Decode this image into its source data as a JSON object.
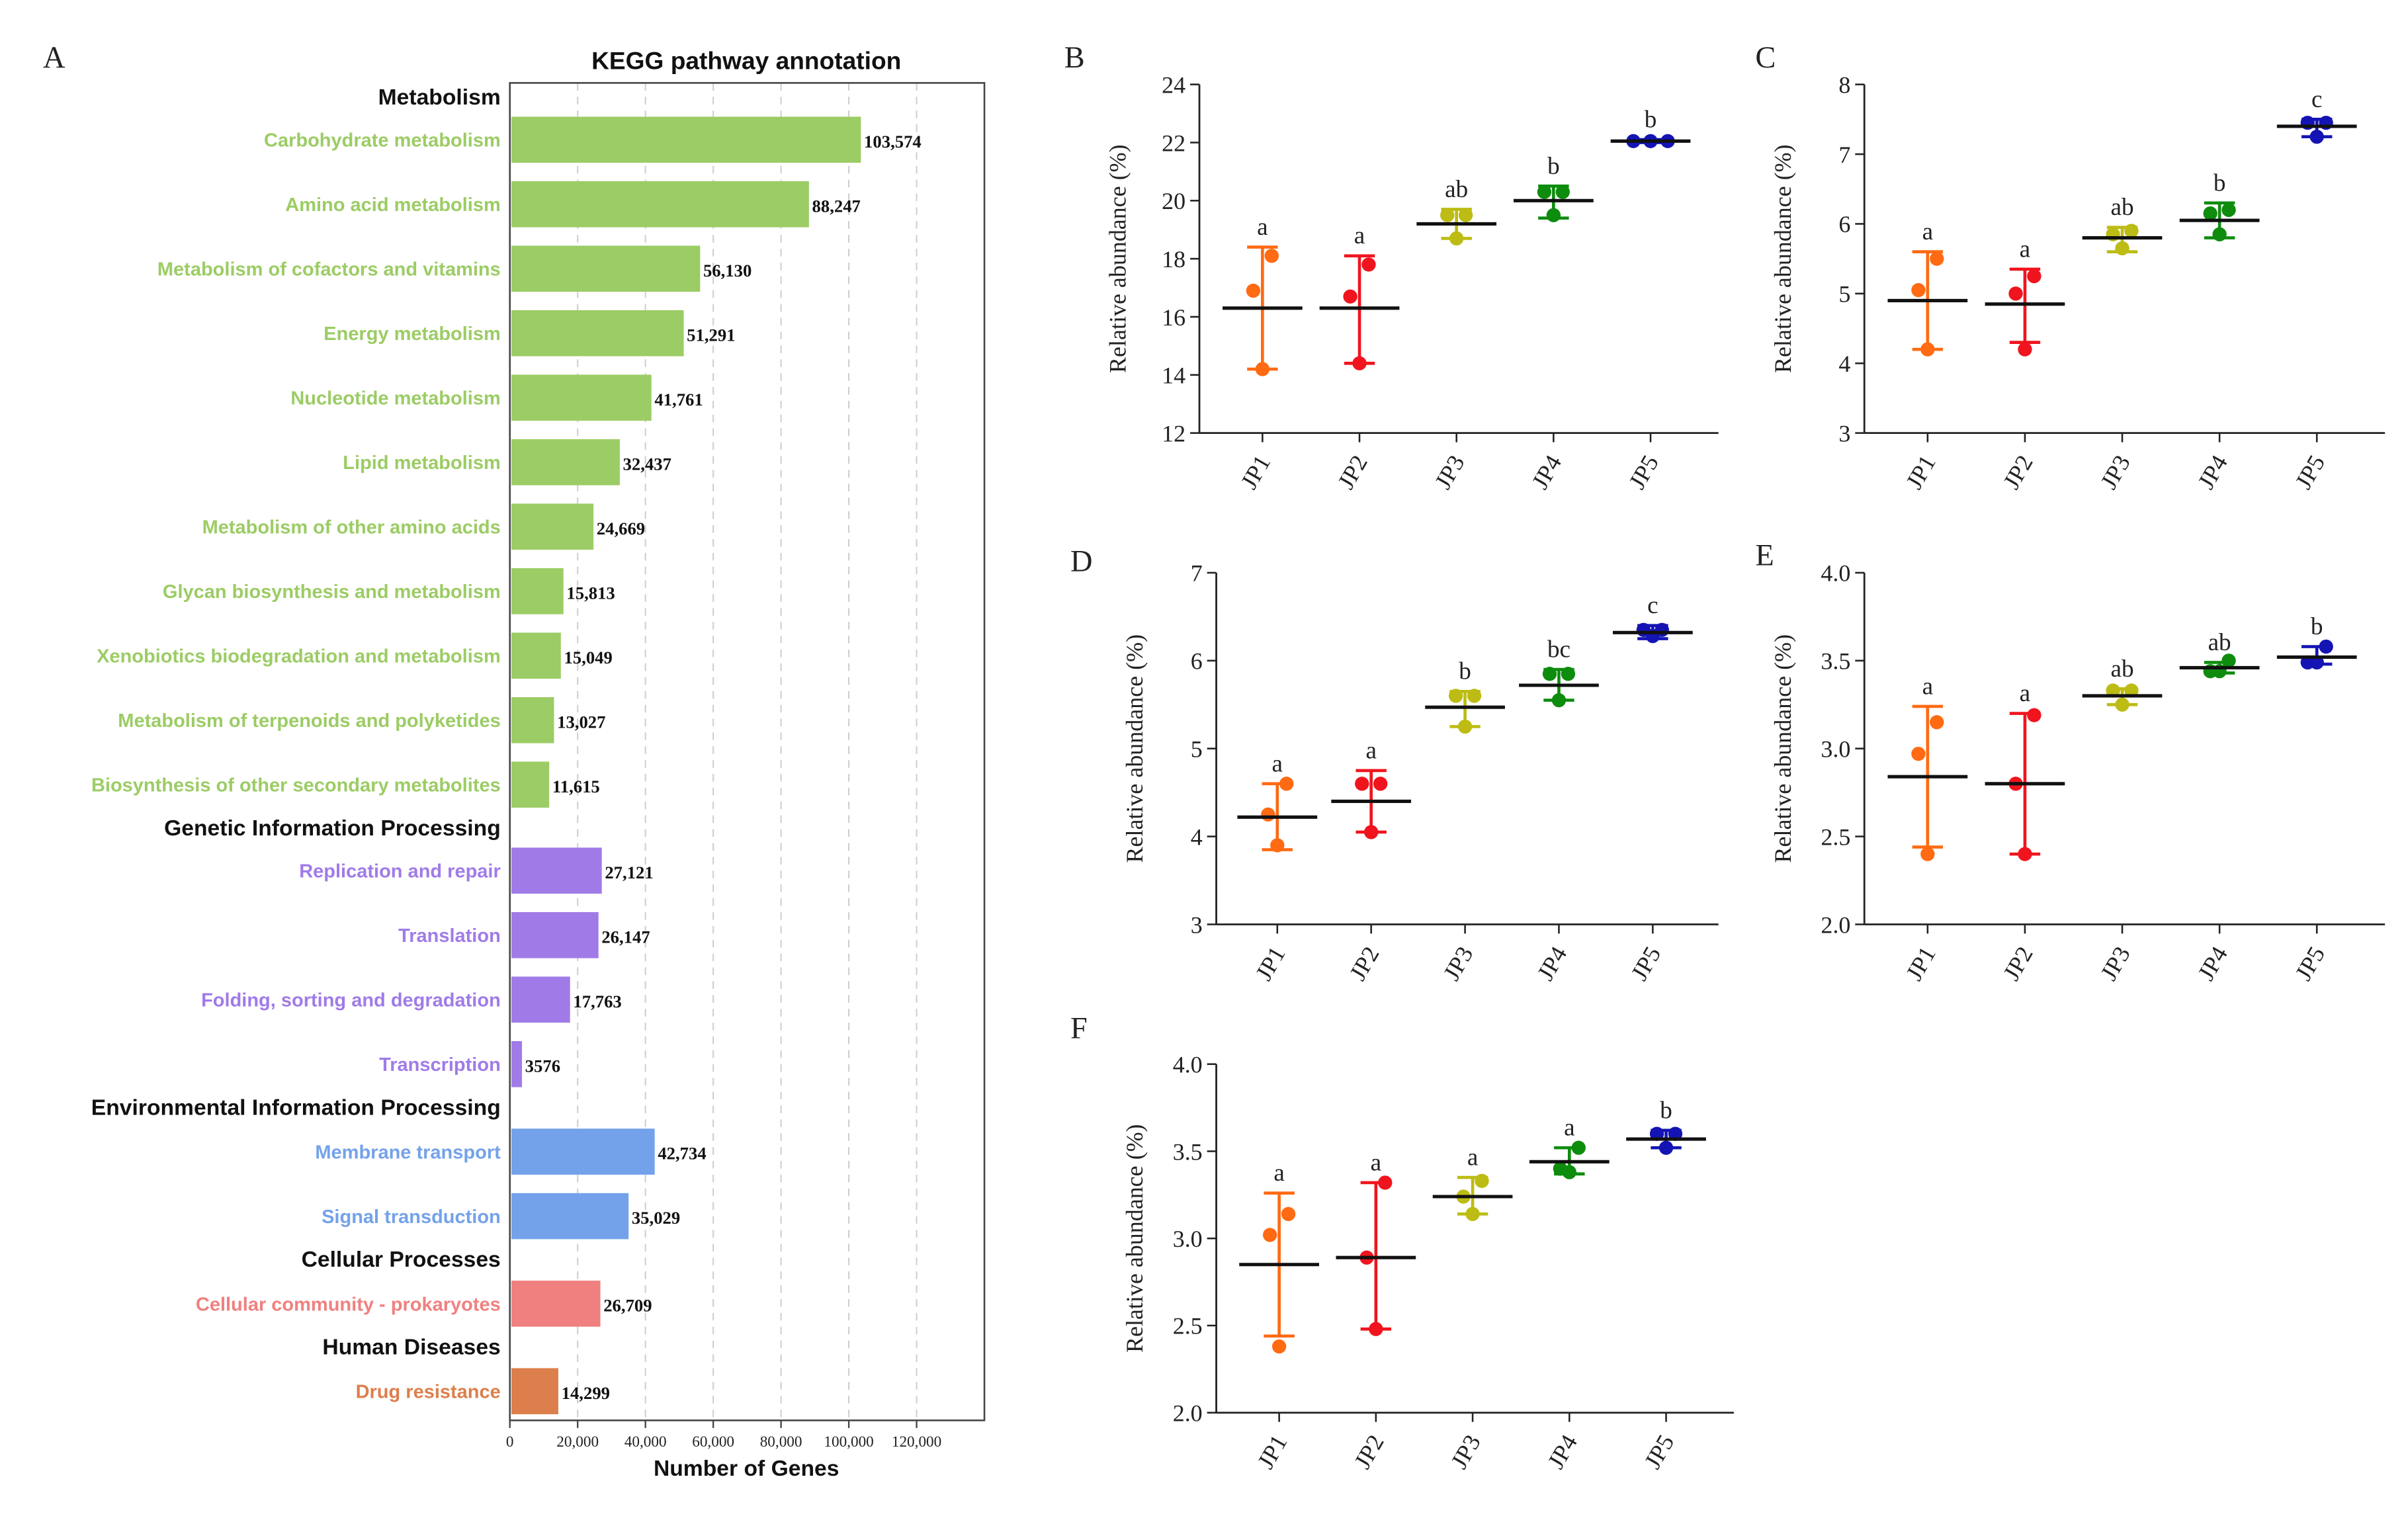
{
  "chart_data": [
    {
      "id": "A",
      "panel_label": "A",
      "type": "bar",
      "orientation": "horizontal",
      "title": "KEGG pathway annotation",
      "xlabel": "Number of Genes",
      "xlim": [
        0,
        140000
      ],
      "xticks": [
        "0",
        "20,000",
        "40,000",
        "60,000",
        "80,000",
        "100,000",
        "120,000"
      ],
      "xtick_values": [
        0,
        20000,
        40000,
        60000,
        80000,
        100000,
        120000
      ],
      "grid": "vertical-dashed",
      "rows": [
        {
          "kind": "header",
          "label": "Metabolism"
        },
        {
          "kind": "bar",
          "label": "Carbohydrate metabolism",
          "value": 103574,
          "value_label": "103,574",
          "color": "#9ccc65"
        },
        {
          "kind": "bar",
          "label": "Amino acid metabolism",
          "value": 88247,
          "value_label": "88,247",
          "color": "#9ccc65"
        },
        {
          "kind": "bar",
          "label": "Metabolism of cofactors and vitamins",
          "value": 56130,
          "value_label": "56,130",
          "color": "#9ccc65"
        },
        {
          "kind": "bar",
          "label": "Energy metabolism",
          "value": 51291,
          "value_label": "51,291",
          "color": "#9ccc65"
        },
        {
          "kind": "bar",
          "label": "Nucleotide metabolism",
          "value": 41761,
          "value_label": "41,761",
          "color": "#9ccc65"
        },
        {
          "kind": "bar",
          "label": "Lipid metabolism",
          "value": 32437,
          "value_label": "32,437",
          "color": "#9ccc65"
        },
        {
          "kind": "bar",
          "label": "Metabolism of other amino acids",
          "value": 24669,
          "value_label": "24,669",
          "color": "#9ccc65"
        },
        {
          "kind": "bar",
          "label": "Glycan biosynthesis and metabolism",
          "value": 15813,
          "value_label": "15,813",
          "color": "#9ccc65"
        },
        {
          "kind": "bar",
          "label": "Xenobiotics biodegradation and metabolism",
          "value": 15049,
          "value_label": "15,049",
          "color": "#9ccc65"
        },
        {
          "kind": "bar",
          "label": "Metabolism of terpenoids and polyketides",
          "value": 13027,
          "value_label": "13,027",
          "color": "#9ccc65"
        },
        {
          "kind": "bar",
          "label": "Biosynthesis of other secondary metabolites",
          "value": 11615,
          "value_label": "11,615",
          "color": "#9ccc65"
        },
        {
          "kind": "header",
          "label": "Genetic Information Processing"
        },
        {
          "kind": "bar",
          "label": "Replication and repair",
          "value": 27121,
          "value_label": "27,121",
          "color": "#a07be8"
        },
        {
          "kind": "bar",
          "label": "Translation",
          "value": 26147,
          "value_label": "26,147",
          "color": "#a07be8"
        },
        {
          "kind": "bar",
          "label": "Folding, sorting and degradation",
          "value": 17763,
          "value_label": "17,763",
          "color": "#a07be8"
        },
        {
          "kind": "bar",
          "label": "Transcription",
          "value": 3576,
          "value_label": "3576",
          "color": "#a07be8"
        },
        {
          "kind": "header",
          "label": "Environmental Information Processing"
        },
        {
          "kind": "bar",
          "label": "Membrane transport",
          "value": 42734,
          "value_label": "42,734",
          "color": "#74a2ea"
        },
        {
          "kind": "bar",
          "label": "Signal transduction",
          "value": 35029,
          "value_label": "35,029",
          "color": "#74a2ea"
        },
        {
          "kind": "header",
          "label": "Cellular Processes"
        },
        {
          "kind": "bar",
          "label": "Cellular community - prokaryotes",
          "value": 26709,
          "value_label": "26,709",
          "color": "#f08080"
        },
        {
          "kind": "header",
          "label": "Human Diseases"
        },
        {
          "kind": "bar",
          "label": "Drug resistance",
          "value": 14299,
          "value_label": "14,299",
          "color": "#dc7f4c"
        }
      ]
    },
    {
      "id": "B",
      "panel_label": "B",
      "type": "scatter",
      "ylabel": "Relative abundance (%)",
      "ylim": [
        12,
        24
      ],
      "yticks": [
        "12",
        "14",
        "16",
        "18",
        "20",
        "22",
        "24"
      ],
      "ytick_values": [
        12,
        14,
        16,
        18,
        20,
        22,
        24
      ],
      "categories": [
        "JP1",
        "JP2",
        "JP3",
        "JP4",
        "JP5"
      ],
      "groups": [
        {
          "name": "JP1",
          "color": "#ff6a13",
          "points": [
            14.2,
            16.9,
            18.1
          ],
          "mean": 16.3,
          "sd_low": 14.2,
          "sd_high": 18.4,
          "letter": "a"
        },
        {
          "name": "JP2",
          "color": "#f0141e",
          "points": [
            14.4,
            16.7,
            17.8
          ],
          "mean": 16.3,
          "sd_low": 14.4,
          "sd_high": 18.1,
          "letter": "a"
        },
        {
          "name": "JP3",
          "color": "#bcbc14",
          "points": [
            18.7,
            19.5,
            19.5
          ],
          "mean": 19.2,
          "sd_low": 18.7,
          "sd_high": 19.7,
          "letter": "ab"
        },
        {
          "name": "JP4",
          "color": "#0e8c0e",
          "points": [
            19.5,
            20.3,
            20.3
          ],
          "mean": 20.0,
          "sd_low": 19.4,
          "sd_high": 20.5,
          "letter": "b"
        },
        {
          "name": "JP5",
          "color": "#1414b4",
          "points": [
            22.05,
            22.05,
            22.05
          ],
          "mean": 22.05,
          "sd_low": 22.0,
          "sd_high": 22.1,
          "letter": "b"
        }
      ]
    },
    {
      "id": "C",
      "panel_label": "C",
      "type": "scatter",
      "ylabel": "Relative abundance (%)",
      "ylim": [
        3,
        8
      ],
      "yticks": [
        "3",
        "4",
        "5",
        "6",
        "7",
        "8"
      ],
      "ytick_values": [
        3,
        4,
        5,
        6,
        7,
        8
      ],
      "categories": [
        "JP1",
        "JP2",
        "JP3",
        "JP4",
        "JP5"
      ],
      "groups": [
        {
          "name": "JP1",
          "color": "#ff6a13",
          "points": [
            4.2,
            5.05,
            5.5
          ],
          "mean": 4.9,
          "sd_low": 4.2,
          "sd_high": 5.6,
          "letter": "a"
        },
        {
          "name": "JP2",
          "color": "#f0141e",
          "points": [
            4.2,
            5.0,
            5.25
          ],
          "mean": 4.85,
          "sd_low": 4.3,
          "sd_high": 5.35,
          "letter": "a"
        },
        {
          "name": "JP3",
          "color": "#bcbc14",
          "points": [
            5.65,
            5.85,
            5.9
          ],
          "mean": 5.8,
          "sd_low": 5.6,
          "sd_high": 5.95,
          "letter": "ab"
        },
        {
          "name": "JP4",
          "color": "#0e8c0e",
          "points": [
            5.85,
            6.15,
            6.2
          ],
          "mean": 6.05,
          "sd_low": 5.8,
          "sd_high": 6.3,
          "letter": "b"
        },
        {
          "name": "JP5",
          "color": "#1414b4",
          "points": [
            7.25,
            7.45,
            7.45
          ],
          "mean": 7.4,
          "sd_low": 7.25,
          "sd_high": 7.5,
          "letter": "c"
        }
      ]
    },
    {
      "id": "D",
      "panel_label": "D",
      "type": "scatter",
      "ylabel": "Relative abundance (%)",
      "ylim": [
        3,
        7
      ],
      "yticks": [
        "3",
        "4",
        "5",
        "6",
        "7"
      ],
      "ytick_values": [
        3,
        4,
        5,
        6,
        7
      ],
      "categories": [
        "JP1",
        "JP2",
        "JP3",
        "JP4",
        "JP5"
      ],
      "groups": [
        {
          "name": "JP1",
          "color": "#ff6a13",
          "points": [
            3.9,
            4.25,
            4.6
          ],
          "mean": 4.22,
          "sd_low": 3.85,
          "sd_high": 4.6,
          "letter": "a"
        },
        {
          "name": "JP2",
          "color": "#f0141e",
          "points": [
            4.05,
            4.6,
            4.6
          ],
          "mean": 4.4,
          "sd_low": 4.05,
          "sd_high": 4.75,
          "letter": "a"
        },
        {
          "name": "JP3",
          "color": "#bcbc14",
          "points": [
            5.25,
            5.6,
            5.6
          ],
          "mean": 5.47,
          "sd_low": 5.25,
          "sd_high": 5.65,
          "letter": "b"
        },
        {
          "name": "JP4",
          "color": "#0e8c0e",
          "points": [
            5.55,
            5.85,
            5.85
          ],
          "mean": 5.72,
          "sd_low": 5.55,
          "sd_high": 5.9,
          "letter": "bc"
        },
        {
          "name": "JP5",
          "color": "#1414b4",
          "points": [
            6.28,
            6.35,
            6.35
          ],
          "mean": 6.32,
          "sd_low": 6.25,
          "sd_high": 6.4,
          "letter": "c"
        }
      ]
    },
    {
      "id": "E",
      "panel_label": "E",
      "type": "scatter",
      "ylabel": "Relative abundance (%)",
      "ylim": [
        2.0,
        4.0
      ],
      "yticks": [
        "2.0",
        "2.5",
        "3.0",
        "3.5",
        "4.0"
      ],
      "ytick_values": [
        2.0,
        2.5,
        3.0,
        3.5,
        4.0
      ],
      "categories": [
        "JP1",
        "JP2",
        "JP3",
        "JP4",
        "JP5"
      ],
      "groups": [
        {
          "name": "JP1",
          "color": "#ff6a13",
          "points": [
            2.4,
            2.97,
            3.15
          ],
          "mean": 2.84,
          "sd_low": 2.44,
          "sd_high": 3.24,
          "letter": "a"
        },
        {
          "name": "JP2",
          "color": "#f0141e",
          "points": [
            2.4,
            2.8,
            3.19
          ],
          "mean": 2.8,
          "sd_low": 2.4,
          "sd_high": 3.2,
          "letter": "a"
        },
        {
          "name": "JP3",
          "color": "#bcbc14",
          "points": [
            3.25,
            3.33,
            3.33
          ],
          "mean": 3.3,
          "sd_low": 3.25,
          "sd_high": 3.34,
          "letter": "ab"
        },
        {
          "name": "JP4",
          "color": "#0e8c0e",
          "points": [
            3.44,
            3.44,
            3.5
          ],
          "mean": 3.46,
          "sd_low": 3.43,
          "sd_high": 3.49,
          "letter": "ab"
        },
        {
          "name": "JP5",
          "color": "#1414b4",
          "points": [
            3.49,
            3.49,
            3.58
          ],
          "mean": 3.52,
          "sd_low": 3.48,
          "sd_high": 3.58,
          "letter": "b"
        }
      ]
    },
    {
      "id": "F",
      "panel_label": "F",
      "type": "scatter",
      "ylabel": "Relative abundance (%)",
      "ylim": [
        2.0,
        4.0
      ],
      "yticks": [
        "2.0",
        "2.5",
        "3.0",
        "3.5",
        "4.0"
      ],
      "ytick_values": [
        2.0,
        2.5,
        3.0,
        3.5,
        4.0
      ],
      "categories": [
        "JP1",
        "JP2",
        "JP3",
        "JP4",
        "JP5"
      ],
      "groups": [
        {
          "name": "JP1",
          "color": "#ff6a13",
          "points": [
            2.38,
            3.02,
            3.14
          ],
          "mean": 2.85,
          "sd_low": 2.44,
          "sd_high": 3.26,
          "letter": "a"
        },
        {
          "name": "JP2",
          "color": "#f0141e",
          "points": [
            2.48,
            2.89,
            3.32
          ],
          "mean": 2.89,
          "sd_low": 2.48,
          "sd_high": 3.32,
          "letter": "a"
        },
        {
          "name": "JP3",
          "color": "#bcbc14",
          "points": [
            3.14,
            3.24,
            3.33
          ],
          "mean": 3.24,
          "sd_low": 3.14,
          "sd_high": 3.35,
          "letter": "a"
        },
        {
          "name": "JP4",
          "color": "#0e8c0e",
          "points": [
            3.38,
            3.4,
            3.52
          ],
          "mean": 3.44,
          "sd_low": 3.37,
          "sd_high": 3.52,
          "letter": "a"
        },
        {
          "name": "JP5",
          "color": "#1414b4",
          "points": [
            3.52,
            3.6,
            3.6
          ],
          "mean": 3.57,
          "sd_low": 3.52,
          "sd_high": 3.62,
          "letter": "b"
        }
      ]
    }
  ]
}
